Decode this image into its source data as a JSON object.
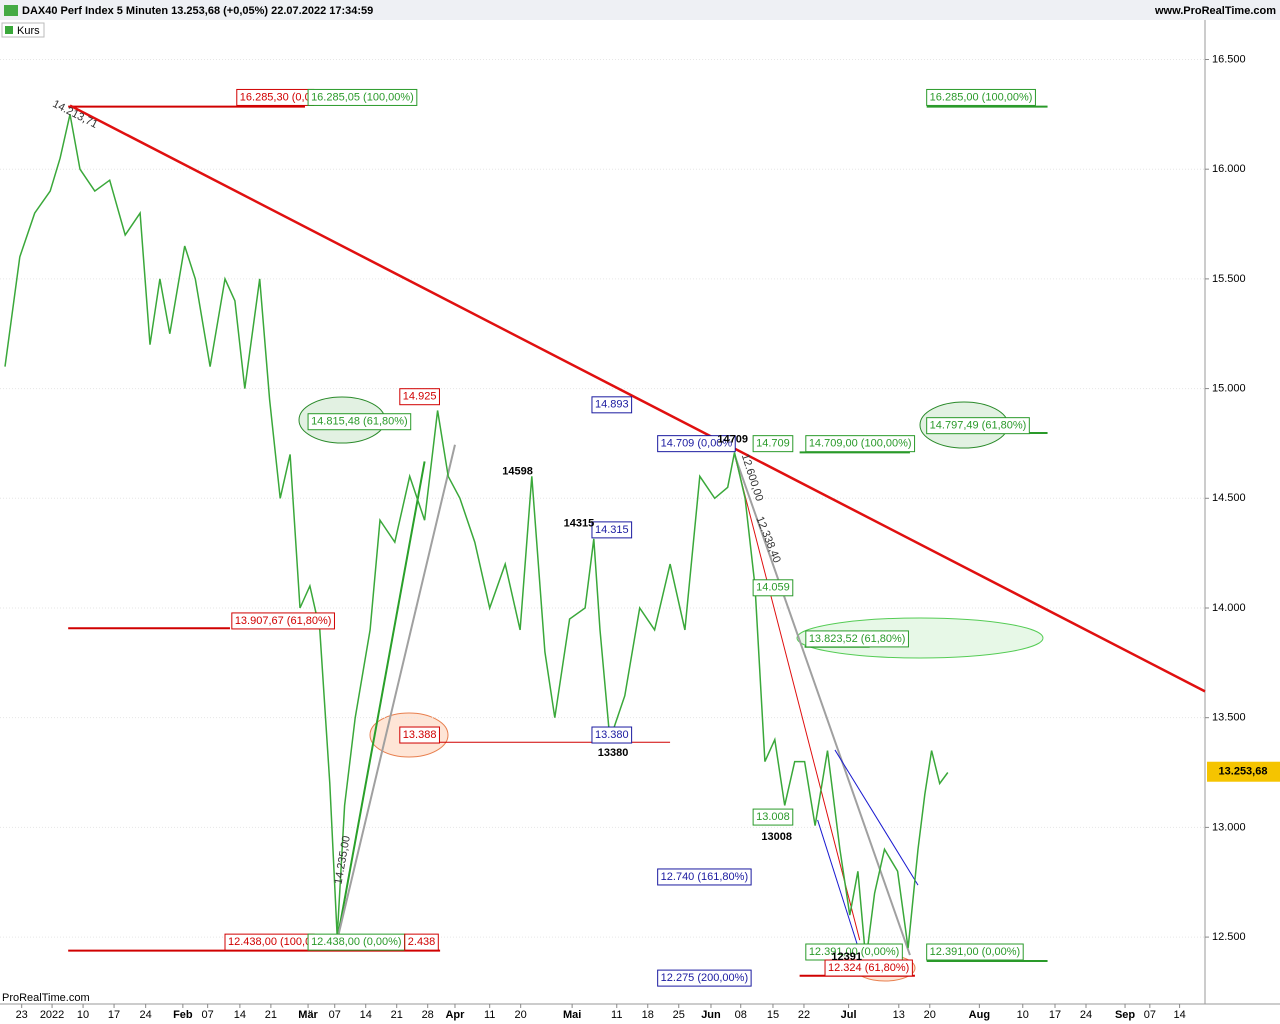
{
  "header": {
    "title": "DAX40 Perf Index 5 Minuten 13.253,68 (+0,05%) 22.07.2022 17:34:59",
    "site": "www.ProRealTime.com",
    "watermark": "ProRealTime.com"
  },
  "chart_data": {
    "type": "line",
    "series": [
      {
        "name": "Kurs",
        "color": "#3aa83a",
        "x": [
          0.8,
          3.2,
          5.6,
          8.1,
          9.7,
          11.3,
          12.9,
          15.3,
          17.7,
          20.2,
          22.6,
          24.2,
          25.8,
          27.4,
          29.8,
          31.5,
          33.9,
          36.3,
          37.9,
          39.5,
          41.9,
          43.5,
          45.2,
          46.8,
          48.4,
          50,
          51.6,
          53.2,
          54.4,
          55.6,
          57.3,
          59.7,
          61.3,
          63.7,
          66.1,
          68.5,
          70.6,
          72.3,
          74.2,
          76.6,
          79,
          81.5,
          83.9,
          85.8,
          87.9,
          89.5,
          91.9,
          94.4,
          95.8,
          96.8,
          98.4,
          100.8,
          103.2,
          105.6,
          108.1,
          110.5,
          112.9,
          115.3,
          117.4,
          118.5,
          120.2,
          121.8,
          123.4,
          125,
          126.6,
          128.2,
          129.8,
          131.5,
          133.5,
          135.5,
          137.1,
          138.4,
          139.7,
          141.1,
          142.7,
          144.8,
          146.5,
          148.1,
          149.2,
          150.3,
          151.6,
          152.9
        ],
        "values": [
          15100,
          15600,
          15800,
          15900,
          16050,
          16250,
          16000,
          15900,
          15950,
          15700,
          15800,
          15200,
          15500,
          15250,
          15650,
          15500,
          15100,
          15500,
          15400,
          15000,
          15500,
          14950,
          14500,
          14700,
          14000,
          14100,
          13900,
          13200,
          12500,
          13100,
          13500,
          13900,
          14400,
          14300,
          14600,
          14400,
          14900,
          14600,
          14500,
          14300,
          14000,
          14200,
          13900,
          14600,
          13800,
          13500,
          13950,
          14000,
          14315,
          13900,
          13400,
          13600,
          14000,
          13900,
          14200,
          13900,
          14600,
          14500,
          14550,
          14709,
          14500,
          14100,
          13300,
          13400,
          13100,
          13300,
          13300,
          13008,
          13350,
          12900,
          12600,
          12800,
          12391,
          12700,
          12900,
          12800,
          12450,
          12900,
          13150,
          13350,
          13200,
          13250
        ]
      }
    ],
    "last_price": {
      "value": 13253.68,
      "label": "13.253,68"
    },
    "xlim": [
      0,
      194.4
    ],
    "xticks": [
      {
        "value": 3.5,
        "label": "23"
      },
      {
        "value": 8.4,
        "label": "2022"
      },
      {
        "value": 13.4,
        "label": "10"
      },
      {
        "value": 18.4,
        "label": "17"
      },
      {
        "value": 23.5,
        "label": "24"
      },
      {
        "value": 29.5,
        "label": "Feb"
      },
      {
        "value": 33.5,
        "label": "07"
      },
      {
        "value": 38.7,
        "label": "14"
      },
      {
        "value": 43.7,
        "label": "21"
      },
      {
        "value": 49.7,
        "label": "Mär"
      },
      {
        "value": 54,
        "label": "07"
      },
      {
        "value": 59,
        "label": "14"
      },
      {
        "value": 64,
        "label": "21"
      },
      {
        "value": 69,
        "label": "28"
      },
      {
        "value": 73.4,
        "label": "Apr"
      },
      {
        "value": 79,
        "label": "11"
      },
      {
        "value": 84,
        "label": "20"
      },
      {
        "value": 92.3,
        "label": "Mai"
      },
      {
        "value": 99.5,
        "label": "11"
      },
      {
        "value": 104.5,
        "label": "18"
      },
      {
        "value": 109.5,
        "label": "25"
      },
      {
        "value": 114.7,
        "label": "Jun"
      },
      {
        "value": 119.5,
        "label": "08"
      },
      {
        "value": 124.7,
        "label": "15"
      },
      {
        "value": 129.7,
        "label": "22"
      },
      {
        "value": 136.9,
        "label": "Jul"
      },
      {
        "value": 145,
        "label": "13"
      },
      {
        "value": 150,
        "label": "20"
      },
      {
        "value": 158,
        "label": "Aug"
      },
      {
        "value": 165,
        "label": "10"
      },
      {
        "value": 170.2,
        "label": "17"
      },
      {
        "value": 175.2,
        "label": "24"
      },
      {
        "value": 181.5,
        "label": "Sep"
      },
      {
        "value": 185.5,
        "label": "07"
      },
      {
        "value": 190.3,
        "label": "14"
      }
    ],
    "ylim": [
      12195,
      16680
    ],
    "yticks": [
      {
        "value": 12500,
        "label": "12.500"
      },
      {
        "value": 13000,
        "label": "13.000"
      },
      {
        "value": 13500,
        "label": "13.500"
      },
      {
        "value": 14000,
        "label": "14.000"
      },
      {
        "value": 14500,
        "label": "14.500"
      },
      {
        "value": 15000,
        "label": "15.000"
      },
      {
        "value": 15500,
        "label": "15.500"
      },
      {
        "value": 16000,
        "label": "16.000"
      },
      {
        "value": 16500,
        "label": "16.500"
      }
    ],
    "grid": true,
    "trendlines": [
      {
        "x": [
          11.3,
          194.4
        ],
        "y": [
          16290,
          13620
        ],
        "color": "#e01010",
        "width": 2.5
      },
      {
        "x": [
          54.4,
          68.5
        ],
        "y": [
          12486,
          14668
        ],
        "color": "#2aa02a",
        "width": 2
      },
      {
        "x": [
          54.4,
          73.4
        ],
        "y": [
          12486,
          14744
        ],
        "color": "#a0a0a0",
        "width": 2
      },
      {
        "x": [
          118.5,
          138.7
        ],
        "y": [
          14698,
          12486
        ],
        "color": "#e01010",
        "width": 1
      },
      {
        "x": [
          118.5,
          146.8
        ],
        "y": [
          14698,
          12418
        ],
        "color": "#a0a0a0",
        "width": 2
      },
      {
        "x": [
          134.7,
          148.1
        ],
        "y": [
          13353,
          12737
        ],
        "color": "#1a1ad0",
        "width": 1
      },
      {
        "x": [
          131.9,
          139
        ],
        "y": [
          13034,
          12404
        ],
        "color": "#1a1ad0",
        "width": 1
      }
    ],
    "levels": [
      {
        "value": 16285,
        "from": 11,
        "to": 49.2,
        "color": "#d00000",
        "width": 2
      },
      {
        "value": 13907.67,
        "from": 11,
        "to": 37.1,
        "color": "#d00000",
        "width": 2
      },
      {
        "value": 12438,
        "from": 11,
        "to": 71,
        "color": "#d00000",
        "width": 2
      },
      {
        "value": 13388,
        "from": 66.1,
        "to": 108.1,
        "color": "#d00000",
        "width": 1
      },
      {
        "value": 12324,
        "from": 129,
        "to": 147.6,
        "color": "#d00000",
        "width": 2
      },
      {
        "value": 16285,
        "from": 149.5,
        "to": 169,
        "color": "#2a9a2a",
        "width": 2
      },
      {
        "value": 14797.49,
        "from": 149.5,
        "to": 169,
        "color": "#2a9a2a",
        "width": 2
      },
      {
        "value": 12391,
        "from": 149.5,
        "to": 169,
        "color": "#2a9a2a",
        "width": 2
      },
      {
        "value": 14709,
        "from": 129,
        "to": 146.8,
        "color": "#2a9a2a",
        "width": 2
      },
      {
        "value": 13823.52,
        "from": 129.8,
        "to": 140.3,
        "color": "#2a9a2a",
        "width": 2
      }
    ],
    "annotations": [
      {
        "text": "16.285,30 (0,0",
        "x": 38.2,
        "y": 16327,
        "color": "#d00000"
      },
      {
        "text": "16.285,05 (100,00%)",
        "x": 49.7,
        "y": 16327,
        "color": "#2a9a2a"
      },
      {
        "text": "16.285,00 (100,00%)",
        "x": 149.5,
        "y": 16327,
        "color": "#2a9a2a"
      },
      {
        "text": "14.815,48 (61,80%)",
        "x": 49.7,
        "y": 14849,
        "color": "#2a9a2a"
      },
      {
        "text": "14.925",
        "x": 64.5,
        "y": 14963,
        "color": "#d00000"
      },
      {
        "text": "14.893",
        "x": 95.5,
        "y": 14926,
        "color": "#1a1aa0"
      },
      {
        "text": "14.709 (0,00%",
        "x": 106.1,
        "y": 14749,
        "color": "#1a1aa0"
      },
      {
        "text": "14.709",
        "x": 121.5,
        "y": 14749,
        "color": "#2a9a2a"
      },
      {
        "text": "14.709,00 (100,00%)",
        "x": 130,
        "y": 14749,
        "color": "#2a9a2a"
      },
      {
        "text": "14.797,49 (61,80%)",
        "x": 149.5,
        "y": 14831,
        "color": "#2a9a2a"
      },
      {
        "text": "14.315",
        "x": 95.5,
        "y": 14356,
        "color": "#1a1aa0"
      },
      {
        "text": "14.059",
        "x": 121.5,
        "y": 14092,
        "color": "#2a9a2a"
      },
      {
        "text": "13.907,67 (61,80%)",
        "x": 37.4,
        "y": 13941,
        "color": "#d00000"
      },
      {
        "text": "13.823,52 (61,80%)",
        "x": 130,
        "y": 13859,
        "color": "#2a9a2a"
      },
      {
        "text": "13.388",
        "x": 64.5,
        "y": 13421,
        "color": "#d00000"
      },
      {
        "text": "13.380",
        "x": 95.5,
        "y": 13421,
        "color": "#1a1aa0"
      },
      {
        "text": "13.008",
        "x": 121.5,
        "y": 13047,
        "color": "#2a9a2a"
      },
      {
        "text": "12.740 (161,80%)",
        "x": 106.1,
        "y": 12774,
        "color": "#1a1aa0"
      },
      {
        "text": "12.438,00 (100,0",
        "x": 36.3,
        "y": 12477,
        "color": "#d00000"
      },
      {
        "text": "12.438,00 (0,00%)",
        "x": 49.7,
        "y": 12477,
        "color": "#2a9a2a"
      },
      {
        "text": "2.438",
        "x": 65.3,
        "y": 12477,
        "color": "#d00000"
      },
      {
        "text": "12.391,00 (0,00%)",
        "x": 130,
        "y": 12432,
        "color": "#2a9a2a"
      },
      {
        "text": "12.391,00 (0,00%)",
        "x": 149.5,
        "y": 12432,
        "color": "#2a9a2a"
      },
      {
        "text": "12.324 (61,80%)",
        "x": 133.1,
        "y": 12359,
        "color": "#d00000"
      },
      {
        "text": "12.275 (200,00%)",
        "x": 106.1,
        "y": 12313,
        "color": "#1a1aa0"
      }
    ],
    "pivots": [
      {
        "text": "14598",
        "x": 83.5,
        "y": 14621
      },
      {
        "text": "14315",
        "x": 93.4,
        "y": 14384
      },
      {
        "text": "14709",
        "x": 118.2,
        "y": 14767
      },
      {
        "text": "13380",
        "x": 98.9,
        "y": 13339
      },
      {
        "text": "13008",
        "x": 125.3,
        "y": 12956
      },
      {
        "text": "12391",
        "x": 136.6,
        "y": 12409
      }
    ],
    "rotated_labels": [
      {
        "text": "14.213,71",
        "x": 12.1,
        "y": 16249
      },
      {
        "text": "12.600,00",
        "x": 121.3,
        "y": 14594
      },
      {
        "text": "12.338,40",
        "x": 123.9,
        "y": 14311
      },
      {
        "text": "14.235,00",
        "x": 55.3,
        "y": 12851
      }
    ]
  }
}
